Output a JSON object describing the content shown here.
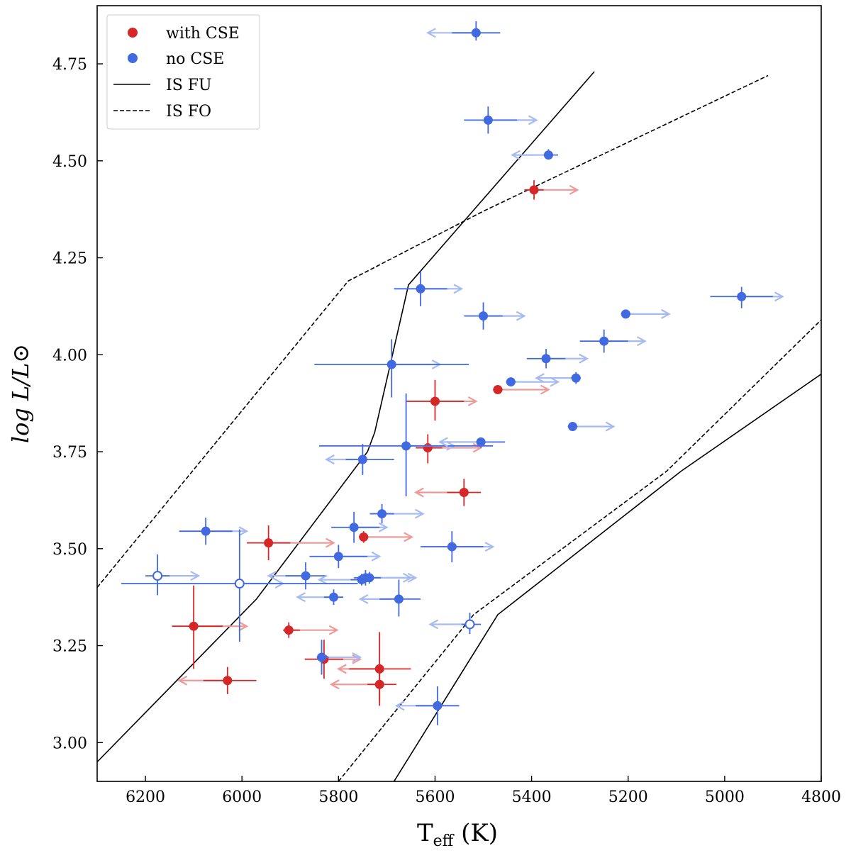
{
  "chart_data": {
    "type": "scatter",
    "title": "",
    "xlabel": "T_eff (K)",
    "xlabel_main": "T",
    "xlabel_sub": "eff",
    "xlabel_unit": " (K)",
    "ylabel": "log L/L⊙",
    "xlim": [
      6300,
      4800
    ],
    "ylim": [
      2.9,
      4.9
    ],
    "x_inverted": true,
    "x_ticks": [
      6200,
      6000,
      5800,
      5600,
      5400,
      5200,
      5000,
      4800
    ],
    "y_ticks": [
      3.0,
      3.25,
      3.5,
      3.75,
      4.0,
      4.25,
      4.5,
      4.75
    ],
    "x_tick_labels": [
      "6200",
      "6000",
      "5800",
      "5600",
      "5400",
      "5200",
      "5000",
      "4800"
    ],
    "y_tick_labels": [
      "3.00",
      "3.25",
      "3.50",
      "3.75",
      "4.00",
      "4.25",
      "4.50",
      "4.75"
    ],
    "colors": {
      "with_cse": "#d62728",
      "with_cse_arrow": "#ee9a9a",
      "no_cse": "#4169e1",
      "no_cse_arrow": "#a6bbf2",
      "line": "#000000"
    },
    "legend": {
      "position": "top-left",
      "entries": [
        {
          "label": "with CSE",
          "kind": "marker",
          "series": "with_cse"
        },
        {
          "label": "no CSE",
          "kind": "marker",
          "series": "no_cse"
        },
        {
          "label": "IS FU",
          "kind": "solid"
        },
        {
          "label": "IS FO",
          "kind": "dashed"
        }
      ]
    },
    "lines": [
      {
        "name": "IS FU blue edge",
        "style": "solid",
        "points": [
          [
            6300,
            2.95
          ],
          [
            5970,
            3.37
          ],
          [
            5740,
            3.75
          ],
          [
            5725,
            3.8
          ],
          [
            5655,
            4.18
          ],
          [
            5270,
            4.73
          ]
        ]
      },
      {
        "name": "IS FU red edge",
        "style": "solid",
        "points": [
          [
            5685,
            2.9
          ],
          [
            5470,
            3.33
          ],
          [
            5090,
            3.7
          ],
          [
            4800,
            3.95
          ]
        ]
      },
      {
        "name": "IS FO blue edge",
        "style": "dashed",
        "points": [
          [
            6300,
            3.4
          ],
          [
            5780,
            4.19
          ],
          [
            5500,
            4.37
          ],
          [
            4910,
            4.72
          ]
        ]
      },
      {
        "name": "IS FO red edge",
        "style": "dashed",
        "points": [
          [
            5800,
            2.9
          ],
          [
            5520,
            3.33
          ],
          [
            5120,
            3.7
          ],
          [
            4800,
            4.09
          ]
        ]
      }
    ],
    "series": [
      {
        "name": "with CSE",
        "key": "with_cse",
        "points": [
          {
            "x": 5395,
            "y": 4.425,
            "xlo": 5415,
            "xhi": 5375,
            "ylo": 4.4,
            "yhi": 4.45,
            "arrow_to": 5305,
            "filled": true
          },
          {
            "x": 5470,
            "y": 3.91,
            "xlo": 5480,
            "xhi": 5460,
            "ylo": 3.9,
            "yhi": 3.92,
            "arrow_to": 5365,
            "filled": true
          },
          {
            "x": 5600,
            "y": 3.88,
            "xlo": 5660,
            "xhi": 5540,
            "ylo": 3.83,
            "yhi": 3.935,
            "arrow_to": 5515,
            "filled": true
          },
          {
            "x": 5615,
            "y": 3.76,
            "xlo": 5640,
            "xhi": 5585,
            "ylo": 3.72,
            "yhi": 3.795,
            "arrow_to": 5505,
            "filled": true
          },
          {
            "x": 5540,
            "y": 3.645,
            "xlo": 5575,
            "xhi": 5505,
            "ylo": 3.61,
            "yhi": 3.68,
            "arrow_to": 5640,
            "filled": true
          },
          {
            "x": 5945,
            "y": 3.515,
            "xlo": 5990,
            "xhi": 5900,
            "ylo": 3.47,
            "yhi": 3.56,
            "arrow_to": 5810,
            "filled": true
          },
          {
            "x": 5748,
            "y": 3.53,
            "xlo": 5758,
            "xhi": 5738,
            "ylo": 3.515,
            "yhi": 3.545,
            "arrow_to": 5648,
            "filled": true
          },
          {
            "x": 6100,
            "y": 3.3,
            "xlo": 6145,
            "xhi": 6040,
            "ylo": 3.19,
            "yhi": 3.405,
            "arrow_to": 5990,
            "filled": true
          },
          {
            "x": 5903,
            "y": 3.29,
            "xlo": 5915,
            "xhi": 5880,
            "ylo": 3.27,
            "yhi": 3.31,
            "arrow_to": 5803,
            "filled": true
          },
          {
            "x": 5830,
            "y": 3.215,
            "xlo": 5870,
            "xhi": 5790,
            "ylo": 3.165,
            "yhi": 3.265,
            "arrow_to": 5755,
            "filled": true
          },
          {
            "x": 5715,
            "y": 3.19,
            "xlo": 5778,
            "xhi": 5650,
            "ylo": 3.095,
            "yhi": 3.285,
            "arrow_to": 5800,
            "filled": true
          },
          {
            "x": 6030,
            "y": 3.16,
            "xlo": 6080,
            "xhi": 5970,
            "ylo": 3.125,
            "yhi": 3.195,
            "arrow_to": 6130,
            "filled": true
          },
          {
            "x": 5715,
            "y": 3.15,
            "xlo": 5740,
            "xhi": 5680,
            "ylo": 3.11,
            "yhi": 3.19,
            "arrow_to": 5815,
            "filled": true
          }
        ]
      },
      {
        "name": "no CSE",
        "key": "no_cse",
        "points": [
          {
            "x": 5515,
            "y": 4.83,
            "xlo": 5565,
            "xhi": 5465,
            "ylo": 4.81,
            "yhi": 4.86,
            "arrow_to": 5615,
            "filled": true
          },
          {
            "x": 5490,
            "y": 4.605,
            "xlo": 5540,
            "xhi": 5430,
            "ylo": 4.57,
            "yhi": 4.64,
            "arrow_to": 5390,
            "filled": true
          },
          {
            "x": 5365,
            "y": 4.515,
            "xlo": 5375,
            "xhi": 5345,
            "ylo": 4.505,
            "yhi": 4.53,
            "arrow_to": 5440,
            "filled": true
          },
          {
            "x": 5630,
            "y": 4.17,
            "xlo": 5685,
            "xhi": 5575,
            "ylo": 4.125,
            "yhi": 4.215,
            "arrow_to": 5545,
            "filled": true
          },
          {
            "x": 5500,
            "y": 4.1,
            "xlo": 5540,
            "xhi": 5460,
            "ylo": 4.065,
            "yhi": 4.135,
            "arrow_to": 5415,
            "filled": true
          },
          {
            "x": 5205,
            "y": 4.105,
            "xlo": 5215,
            "xhi": 5195,
            "ylo": 4.095,
            "yhi": 4.115,
            "arrow_to": 5115,
            "filled": true
          },
          {
            "x": 4965,
            "y": 4.15,
            "xlo": 5030,
            "xhi": 4900,
            "ylo": 4.12,
            "yhi": 4.175,
            "arrow_to": 4880,
            "filled": true
          },
          {
            "x": 5250,
            "y": 4.035,
            "xlo": 5300,
            "xhi": 5200,
            "ylo": 4.005,
            "yhi": 4.065,
            "arrow_to": 5165,
            "filled": true
          },
          {
            "x": 5370,
            "y": 3.99,
            "xlo": 5410,
            "xhi": 5330,
            "ylo": 3.965,
            "yhi": 4.015,
            "arrow_to": 5285,
            "filled": true
          },
          {
            "x": 5690,
            "y": 3.975,
            "xlo": 5850,
            "xhi": 5530,
            "ylo": 3.89,
            "yhi": 4.04,
            "arrow_to": 5590,
            "filled": true
          },
          {
            "x": 5443,
            "y": 3.93,
            "xlo": 5453,
            "xhi": 5433,
            "ylo": 3.92,
            "yhi": 3.94,
            "arrow_to": 5345,
            "filled": true
          },
          {
            "x": 5308,
            "y": 3.94,
            "xlo": 5318,
            "xhi": 5298,
            "ylo": 3.925,
            "yhi": 3.955,
            "arrow_to": 5390,
            "filled": true
          },
          {
            "x": 5315,
            "y": 3.815,
            "xlo": 5325,
            "xhi": 5305,
            "ylo": 3.805,
            "yhi": 3.825,
            "arrow_to": 5230,
            "filled": true
          },
          {
            "x": 5660,
            "y": 3.765,
            "xlo": 5840,
            "xhi": 5480,
            "ylo": 3.635,
            "yhi": 3.9,
            "arrow_to": 5560,
            "filled": true
          },
          {
            "x": 5505,
            "y": 3.775,
            "xlo": 5515,
            "xhi": 5455,
            "ylo": 3.76,
            "yhi": 3.785,
            "arrow_to": 5590,
            "filled": true
          },
          {
            "x": 5750,
            "y": 3.73,
            "xlo": 5785,
            "xhi": 5685,
            "ylo": 3.69,
            "yhi": 3.77,
            "arrow_to": 5825,
            "filled": true
          },
          {
            "x": 5710,
            "y": 3.59,
            "xlo": 5735,
            "xhi": 5685,
            "ylo": 3.565,
            "yhi": 3.615,
            "arrow_to": 5625,
            "filled": true
          },
          {
            "x": 6075,
            "y": 3.545,
            "xlo": 6130,
            "xhi": 6020,
            "ylo": 3.51,
            "yhi": 3.58,
            "arrow_to": 5990,
            "filled": true
          },
          {
            "x": 5768,
            "y": 3.555,
            "xlo": 5815,
            "xhi": 5715,
            "ylo": 3.515,
            "yhi": 3.595,
            "arrow_to": 5700,
            "filled": true
          },
          {
            "x": 5565,
            "y": 3.505,
            "xlo": 5630,
            "xhi": 5500,
            "ylo": 3.465,
            "yhi": 3.545,
            "arrow_to": 5480,
            "filled": true
          },
          {
            "x": 5800,
            "y": 3.48,
            "xlo": 5860,
            "xhi": 5740,
            "ylo": 3.45,
            "yhi": 3.51,
            "arrow_to": 5715,
            "filled": true
          },
          {
            "x": 5868,
            "y": 3.43,
            "xlo": 5910,
            "xhi": 5825,
            "ylo": 3.395,
            "yhi": 3.465,
            "arrow_to": 5945,
            "filled": true
          },
          {
            "x": 5752,
            "y": 3.42,
            "xlo": 5775,
            "xhi": 5728,
            "ylo": 3.405,
            "yhi": 3.435,
            "arrow_to": 5840,
            "filled": true
          },
          {
            "x": 5744,
            "y": 3.425,
            "xlo": 5768,
            "xhi": 5720,
            "ylo": 3.405,
            "yhi": 3.445,
            "arrow_to": 5650,
            "filled": true
          },
          {
            "x": 5736,
            "y": 3.425,
            "xlo": 5760,
            "xhi": 5712,
            "ylo": 3.41,
            "yhi": 3.44,
            "arrow_to": 5640,
            "filled": true
          },
          {
            "x": 5810,
            "y": 3.375,
            "xlo": 5830,
            "xhi": 5790,
            "ylo": 3.355,
            "yhi": 3.395,
            "arrow_to": 5885,
            "filled": true
          },
          {
            "x": 5675,
            "y": 3.37,
            "xlo": 5715,
            "xhi": 5630,
            "ylo": 3.325,
            "yhi": 3.42,
            "arrow_to": 5755,
            "filled": true
          },
          {
            "x": 5835,
            "y": 3.22,
            "xlo": 5845,
            "xhi": 5820,
            "ylo": 3.175,
            "yhi": 3.265,
            "arrow_to": 5755,
            "filled": true
          },
          {
            "x": 5595,
            "y": 3.095,
            "xlo": 5640,
            "xhi": 5550,
            "ylo": 3.045,
            "yhi": 3.145,
            "arrow_to": 5680,
            "filled": true
          },
          {
            "x": 6175,
            "y": 3.43,
            "xlo": 6200,
            "xhi": 6150,
            "ylo": 3.38,
            "yhi": 3.485,
            "arrow_to": 6090,
            "filled": false
          },
          {
            "x": 6005,
            "y": 3.41,
            "xlo": 6250,
            "xhi": 5760,
            "ylo": 3.26,
            "yhi": 3.55,
            "arrow_to": 5915,
            "filled": false
          },
          {
            "x": 5528,
            "y": 3.305,
            "xlo": 5545,
            "xhi": 5505,
            "ylo": 3.28,
            "yhi": 3.335,
            "arrow_to": 5610,
            "filled": false
          }
        ]
      }
    ]
  }
}
